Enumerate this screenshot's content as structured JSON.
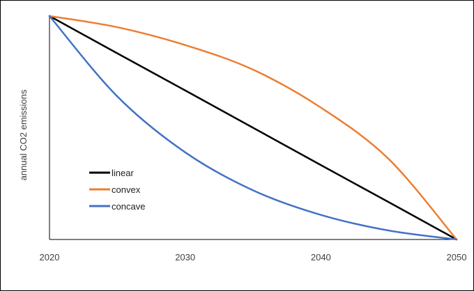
{
  "chart_data": {
    "type": "line",
    "title": "",
    "xlabel": "",
    "ylabel": "annual CO2 emissions",
    "x": [
      2020,
      2025,
      2030,
      2035,
      2040,
      2045,
      2050
    ],
    "xlim": [
      2020,
      2050
    ],
    "ylim": [
      0,
      1
    ],
    "xticks": [
      "2020",
      "2030",
      "2040",
      "2050"
    ],
    "y_tick_labels_shown": false,
    "grid": false,
    "legend_position": "left-middle",
    "series": [
      {
        "name": "linear",
        "color": "#000000",
        "values": [
          1.0,
          0.833,
          0.667,
          0.5,
          0.333,
          0.167,
          0.0
        ]
      },
      {
        "name": "convex",
        "color": "#ed7d31",
        "values": [
          1.0,
          0.95,
          0.87,
          0.76,
          0.59,
          0.36,
          0.0
        ]
      },
      {
        "name": "concave",
        "color": "#4472c4",
        "values": [
          1.0,
          0.64,
          0.39,
          0.22,
          0.11,
          0.04,
          0.0
        ]
      }
    ]
  }
}
